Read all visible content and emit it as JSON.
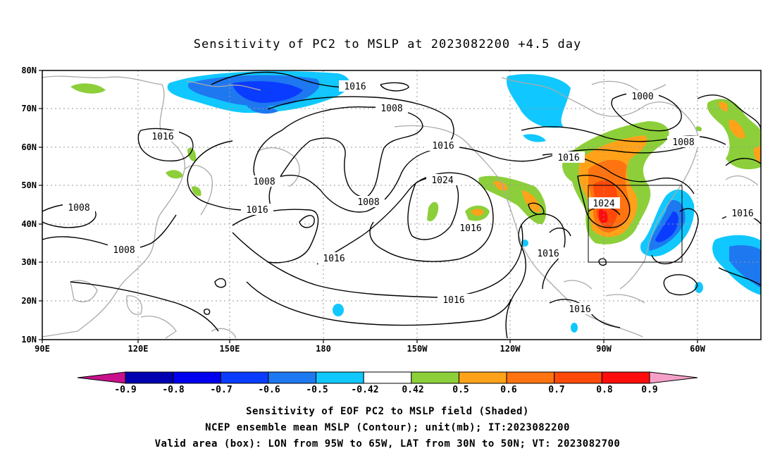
{
  "title": "Sensitivity of PC2 to MSLP at 2023082200 +4.5 day",
  "map": {
    "lon_labels": [
      "90E",
      "120E",
      "150E",
      "180",
      "150W",
      "120W",
      "90W",
      "60W"
    ],
    "lat_labels": [
      "80N",
      "70N",
      "60N",
      "50N",
      "40N",
      "30N",
      "20N",
      "10N"
    ],
    "contour_labels": [
      "1016",
      "1008",
      "1016",
      "1008",
      "1016",
      "1008",
      "1016",
      "1016",
      "1024",
      "1008",
      "1016",
      "1016",
      "1000",
      "1008",
      "1024",
      "1016",
      "1016",
      "1016",
      "1008",
      "1016"
    ],
    "box": {
      "lon_from": "95W",
      "lon_to": "65W",
      "lat_from": "30N",
      "lat_to": "50N"
    }
  },
  "colorbar": {
    "ticks": [
      "-0.9",
      "-0.8",
      "-0.7",
      "-0.6",
      "-0.5",
      "-0.42",
      "0.42",
      "0.5",
      "0.6",
      "0.7",
      "0.8",
      "0.9"
    ],
    "colors": [
      "#0000b0",
      "#0000ee",
      "#0a3cff",
      "#1e78f0",
      "#10c8ff",
      "#ffffff",
      "#8ccf3a",
      "#ffa21a",
      "#ff7410",
      "#ff4a0a",
      "#ff0c0c"
    ],
    "low_end_color": "#c8108c",
    "high_end_color": "#f4a0c8"
  },
  "captions": {
    "line1": "Sensitivity of EOF PC2 to MSLP field (Shaded)",
    "line2": "NCEP ensemble mean MSLP (Contour); unit(mb); IT:2023082200",
    "line3": "Valid area (box): LON from 95W to 65W, LAT from 30N to 50N; VT: 2023082700"
  }
}
